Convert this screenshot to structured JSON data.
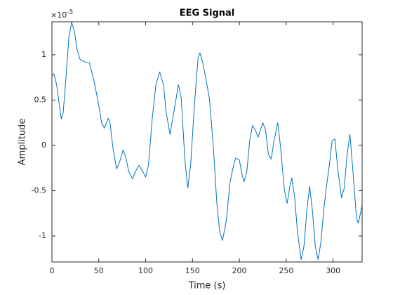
{
  "chart_data": {
    "type": "line",
    "title": "EEG Signal",
    "x_label": "Time (s)",
    "y_label": "Amplitude",
    "y_multiplier": {
      "base": "×10",
      "exponent": "-5"
    },
    "xlim": [
      0,
      331
    ],
    "ylim": [
      -1.287,
      1.364
    ],
    "xticks": [
      0,
      50,
      100,
      150,
      200,
      250,
      300
    ],
    "yticks": [
      -1,
      -0.5,
      0,
      0.5,
      1
    ],
    "x": [
      0,
      2,
      5,
      8,
      10,
      12,
      15,
      18,
      21,
      24,
      27,
      30,
      35,
      40,
      45,
      50,
      53,
      56,
      60,
      62,
      65,
      69,
      72,
      76,
      79,
      82,
      86,
      90,
      93,
      97,
      100,
      103,
      107,
      111,
      115,
      119,
      122,
      126,
      130,
      135,
      138,
      142,
      145,
      148,
      152,
      156,
      158,
      161,
      164,
      168,
      172,
      176,
      179,
      182,
      186,
      190,
      193,
      196,
      200,
      203,
      205,
      208,
      211,
      214,
      217,
      220,
      225,
      228,
      231,
      234,
      237,
      241,
      244,
      248,
      251,
      254,
      256,
      259,
      262,
      266,
      269,
      272,
      275,
      278,
      281,
      284,
      287,
      290,
      293,
      296,
      299,
      302,
      305,
      309,
      312,
      315,
      318,
      321,
      325,
      327,
      331
    ],
    "series": [
      {
        "name": "EEG",
        "color": "#0072bd",
        "values": [
          0.77,
          0.79,
          0.67,
          0.44,
          0.29,
          0.36,
          0.75,
          1.18,
          1.36,
          1.26,
          1.05,
          0.95,
          0.92,
          0.91,
          0.71,
          0.44,
          0.25,
          0.19,
          0.3,
          0.25,
          -0.02,
          -0.26,
          -0.19,
          -0.05,
          -0.14,
          -0.29,
          -0.37,
          -0.27,
          -0.22,
          -0.29,
          -0.35,
          -0.22,
          0.29,
          0.67,
          0.81,
          0.67,
          0.36,
          0.12,
          0.36,
          0.67,
          0.52,
          -0.18,
          -0.47,
          -0.22,
          0.44,
          0.97,
          1.02,
          0.91,
          0.75,
          0.52,
          0.02,
          -0.64,
          -0.95,
          -1.05,
          -0.84,
          -0.41,
          -0.26,
          -0.14,
          -0.16,
          -0.33,
          -0.4,
          -0.29,
          0.05,
          0.22,
          0.17,
          0.09,
          0.25,
          0.17,
          -0.1,
          -0.15,
          0.05,
          0.25,
          -0.02,
          -0.49,
          -0.64,
          -0.45,
          -0.36,
          -0.57,
          -0.95,
          -1.26,
          -1.11,
          -0.72,
          -0.45,
          -0.72,
          -1.11,
          -1.26,
          -1.07,
          -0.72,
          -0.45,
          -0.22,
          0.05,
          0.07,
          -0.26,
          -0.58,
          -0.47,
          -0.1,
          0.12,
          -0.26,
          -0.8,
          -0.86,
          -0.66
        ]
      }
    ]
  }
}
